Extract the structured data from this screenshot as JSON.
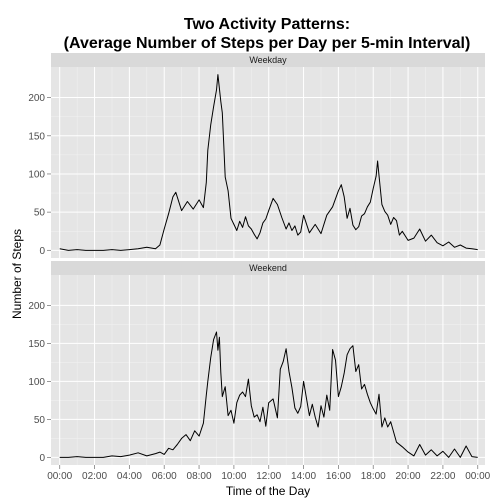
{
  "chart_data": {
    "type": "line",
    "title_line1": "Two Activity Patterns:",
    "title_line2": "(Average Number of Steps per Day per 5-min Interval)",
    "xlabel": "Time of the Day",
    "ylabel": "Number of Steps",
    "xlim": [
      -30,
      1465
    ],
    "ylim": [
      -10,
      240
    ],
    "x_ticks": [
      0,
      120,
      240,
      360,
      480,
      600,
      720,
      840,
      960,
      1080,
      1200,
      1320,
      1440
    ],
    "x_tick_labels": [
      "00:00",
      "02:00",
      "04:00",
      "06:00",
      "08:00",
      "10:00",
      "12:00",
      "14:00",
      "16:00",
      "18:00",
      "20:00",
      "22:00",
      "00:00"
    ],
    "y_ticks": [
      0,
      50,
      100,
      150,
      200
    ],
    "y_tick_labels": [
      "0",
      "50",
      "100",
      "150",
      "200"
    ],
    "grid": true,
    "panels": [
      {
        "name": "Weekday",
        "x": [
          0,
          30,
          60,
          90,
          120,
          150,
          180,
          210,
          240,
          270,
          300,
          330,
          345,
          360,
          375,
          390,
          400,
          420,
          440,
          460,
          480,
          495,
          505,
          510,
          520,
          530,
          540,
          545,
          550,
          555,
          560,
          565,
          570,
          580,
          590,
          600,
          610,
          620,
          630,
          640,
          650,
          660,
          670,
          680,
          690,
          700,
          710,
          720,
          735,
          750,
          765,
          780,
          790,
          800,
          810,
          820,
          830,
          840,
          860,
          880,
          900,
          920,
          940,
          960,
          970,
          980,
          990,
          1000,
          1010,
          1020,
          1030,
          1040,
          1050,
          1060,
          1070,
          1080,
          1090,
          1095,
          1100,
          1110,
          1120,
          1130,
          1140,
          1150,
          1160,
          1170,
          1180,
          1200,
          1220,
          1240,
          1260,
          1280,
          1300,
          1320,
          1340,
          1360,
          1380,
          1400,
          1420,
          1440
        ],
        "y": [
          2,
          0,
          1,
          0,
          0,
          0,
          1,
          0,
          1,
          2,
          4,
          2,
          7,
          28,
          48,
          70,
          76,
          52,
          64,
          54,
          66,
          56,
          89,
          131,
          164,
          188,
          210,
          230,
          212,
          195,
          180,
          140,
          96,
          78,
          42,
          34,
          26,
          38,
          30,
          44,
          32,
          28,
          21,
          15,
          23,
          36,
          41,
          52,
          68,
          60,
          43,
          28,
          36,
          26,
          32,
          20,
          24,
          46,
          23,
          34,
          22,
          46,
          57,
          78,
          86,
          70,
          42,
          55,
          33,
          27,
          31,
          45,
          48,
          57,
          63,
          81,
          97,
          117,
          98,
          60,
          51,
          46,
          34,
          43,
          39,
          20,
          25,
          13,
          16,
          28,
          12,
          20,
          10,
          6,
          11,
          4,
          7,
          3,
          2,
          1
        ]
      },
      {
        "name": "Weekend",
        "x": [
          0,
          30,
          60,
          90,
          120,
          150,
          180,
          210,
          240,
          270,
          300,
          330,
          345,
          360,
          375,
          390,
          405,
          420,
          435,
          450,
          465,
          480,
          495,
          505,
          510,
          520,
          530,
          540,
          545,
          550,
          555,
          560,
          570,
          580,
          590,
          600,
          610,
          620,
          630,
          640,
          650,
          660,
          670,
          680,
          690,
          700,
          710,
          720,
          735,
          750,
          760,
          770,
          780,
          790,
          800,
          810,
          820,
          830,
          840,
          860,
          870,
          880,
          890,
          900,
          910,
          920,
          930,
          940,
          950,
          960,
          970,
          980,
          990,
          1000,
          1010,
          1020,
          1030,
          1040,
          1050,
          1060,
          1070,
          1080,
          1090,
          1100,
          1110,
          1120,
          1130,
          1140,
          1160,
          1180,
          1200,
          1220,
          1240,
          1260,
          1280,
          1300,
          1320,
          1340,
          1360,
          1380,
          1400,
          1420,
          1440
        ],
        "y": [
          0,
          0,
          1,
          0,
          0,
          0,
          2,
          1,
          3,
          6,
          2,
          5,
          7,
          4,
          12,
          10,
          17,
          25,
          30,
          22,
          35,
          28,
          45,
          82,
          100,
          131,
          155,
          165,
          141,
          158,
          112,
          80,
          93,
          55,
          62,
          45,
          72,
          82,
          86,
          80,
          103,
          68,
          53,
          56,
          47,
          66,
          41,
          72,
          77,
          52,
          116,
          126,
          143,
          113,
          92,
          65,
          58,
          67,
          100,
          55,
          70,
          53,
          40,
          68,
          53,
          82,
          62,
          142,
          128,
          80,
          93,
          111,
          135,
          143,
          147,
          113,
          122,
          90,
          96,
          83,
          72,
          64,
          57,
          83,
          40,
          52,
          40,
          47,
          20,
          14,
          7,
          2,
          17,
          3,
          10,
          2,
          8,
          0,
          11,
          0,
          15,
          1,
          0
        ]
      }
    ]
  }
}
